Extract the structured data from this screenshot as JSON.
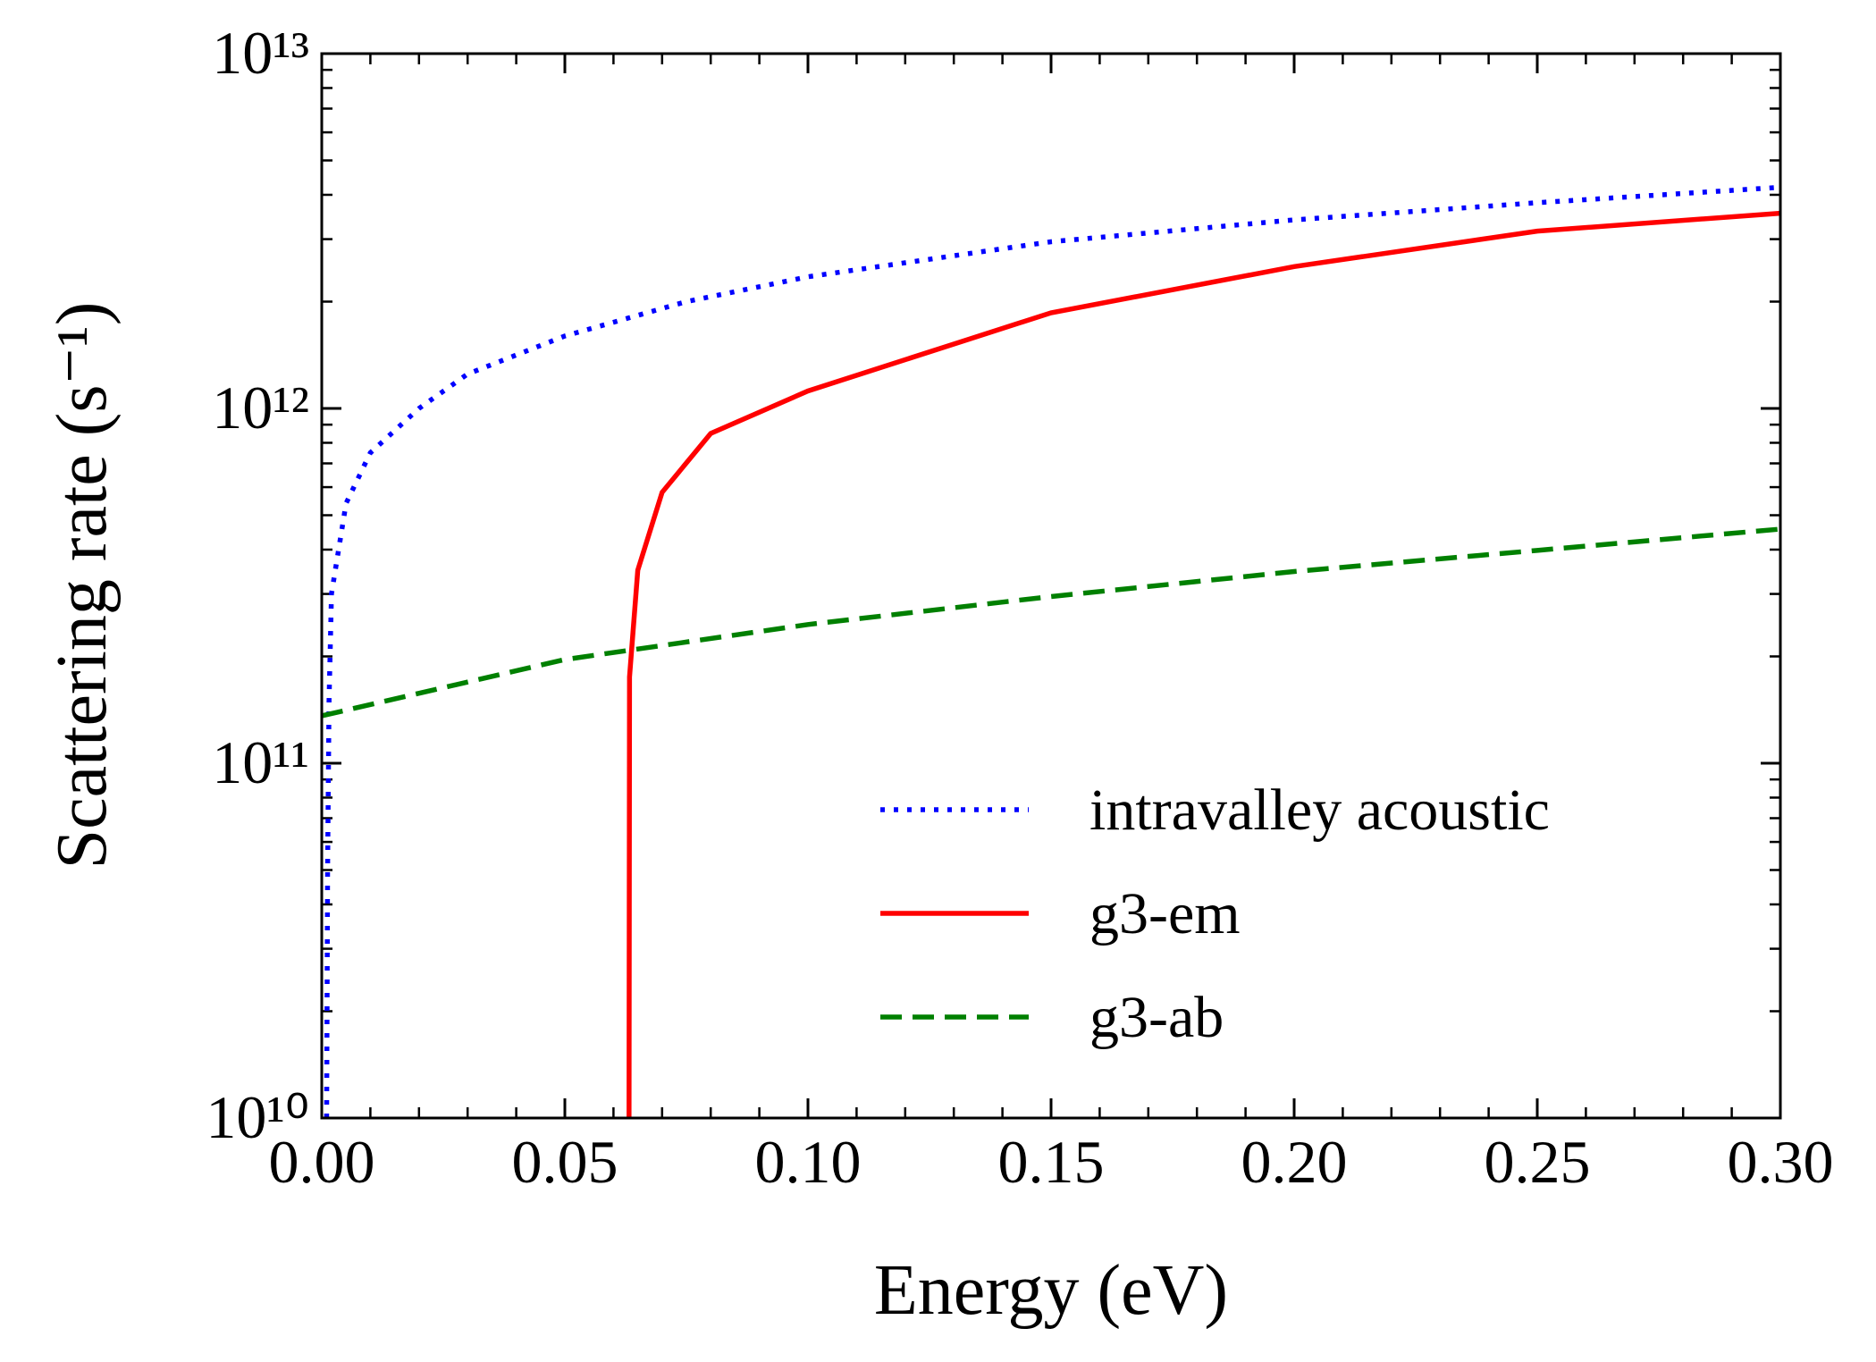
{
  "chart_data": {
    "type": "line",
    "xlabel": "Energy (eV)",
    "ylabel": "Scattering rate (s⁻¹)",
    "yscale": "log",
    "xlim": [
      0,
      0.3
    ],
    "ylim": [
      10000000000.0,
      10000000000000.0
    ],
    "xticks": [
      {
        "value": 0,
        "label": "0.00"
      },
      {
        "value": 0.05,
        "label": "0.05"
      },
      {
        "value": 0.1,
        "label": "0.10"
      },
      {
        "value": 0.15,
        "label": "0.15"
      },
      {
        "value": 0.2,
        "label": "0.20"
      },
      {
        "value": 0.25,
        "label": "0.25"
      },
      {
        "value": 0.3,
        "label": "0.30"
      }
    ],
    "yticks": [
      {
        "value": 10000000000.0,
        "label": "10¹⁰"
      },
      {
        "value": 100000000000.0,
        "label": "10¹¹"
      },
      {
        "value": 1000000000000.0,
        "label": "10¹²"
      },
      {
        "value": 10000000000000.0,
        "label": "10¹³"
      }
    ],
    "legend": "lower right",
    "series": [
      {
        "name": "intravalley acoustic",
        "color": "#0000ff",
        "linestyle": "dotted",
        "x": [
          0.001,
          0.0012,
          0.0015,
          0.002,
          0.005,
          0.01,
          0.02,
          0.03,
          0.05,
          0.075,
          0.1,
          0.15,
          0.2,
          0.25,
          0.3
        ],
        "values": [
          10000000000.0,
          50000000000.0,
          150000000000.0,
          300000000000.0,
          540000000000.0,
          750000000000.0,
          1000000000000.0,
          1250000000000.0,
          1600000000000.0,
          2000000000000.0,
          2350000000000.0,
          2950000000000.0,
          3400000000000.0,
          3800000000000.0,
          4200000000000.0
        ]
      },
      {
        "name": "g3-em",
        "color": "#ff0000",
        "linestyle": "solid",
        "x": [
          0.0632,
          0.0633,
          0.065,
          0.07,
          0.08,
          0.1,
          0.15,
          0.2,
          0.25,
          0.3
        ],
        "values": [
          10000000000.0,
          175000000000.0,
          350000000000.0,
          580000000000.0,
          850000000000.0,
          1120000000000.0,
          1860000000000.0,
          2510000000000.0,
          3160000000000.0,
          3550000000000.0
        ]
      },
      {
        "name": "g3-ab",
        "color": "#008000",
        "linestyle": "dashed",
        "x": [
          0,
          0.05,
          0.1,
          0.15,
          0.2,
          0.25,
          0.3
        ],
        "values": [
          136000000000.0,
          196000000000.0,
          246000000000.0,
          295000000000.0,
          347000000000.0,
          398000000000.0,
          457000000000.0
        ]
      }
    ]
  }
}
